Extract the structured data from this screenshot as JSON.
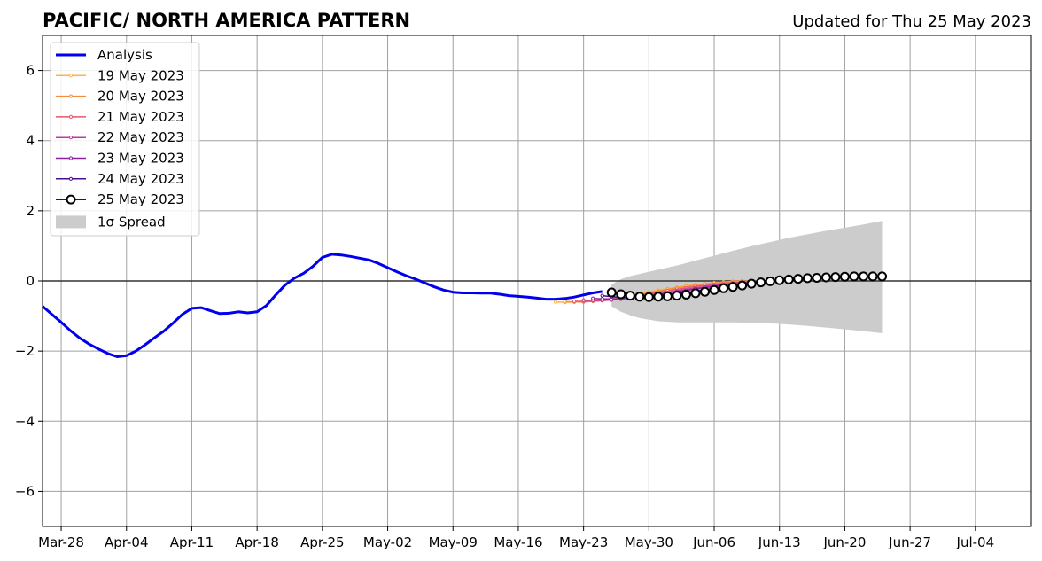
{
  "chart_data": {
    "type": "line",
    "title": "PACIFIC/ NORTH AMERICA PATTERN",
    "subtitle": "Updated for Thu 25 May 2023",
    "xlabel": "",
    "ylabel": "",
    "x_range": [
      "2023-03-26",
      "2023-07-10"
    ],
    "ylim": [
      -7,
      7
    ],
    "y_ticks": [
      -6,
      -4,
      -2,
      0,
      2,
      4,
      6
    ],
    "y_tick_labels": [
      "−6",
      "−4",
      "−2",
      "0",
      "2",
      "4",
      "6"
    ],
    "x_ticks": [
      "2023-03-28",
      "2023-04-04",
      "2023-04-11",
      "2023-04-18",
      "2023-04-25",
      "2023-05-02",
      "2023-05-09",
      "2023-05-16",
      "2023-05-23",
      "2023-05-30",
      "2023-06-06",
      "2023-06-13",
      "2023-06-20",
      "2023-06-27",
      "2023-07-04"
    ],
    "x_tick_labels": [
      "Mar-28",
      "Apr-04",
      "Apr-11",
      "Apr-18",
      "Apr-25",
      "May-02",
      "May-09",
      "May-16",
      "May-23",
      "May-30",
      "Jun-06",
      "Jun-13",
      "Jun-20",
      "Jun-27",
      "Jul-04"
    ],
    "grid": true,
    "legend_position": "top-left",
    "legend": [
      "Analysis",
      "19 May 2023",
      "20 May 2023",
      "21 May 2023",
      "22 May 2023",
      "23 May 2023",
      "24 May 2023",
      "25 May 2023",
      "1σ Spread"
    ],
    "series": [
      {
        "name": "Analysis",
        "color": "#0000ee",
        "x": [
          "2023-03-26",
          "2023-03-27",
          "2023-03-28",
          "2023-03-29",
          "2023-03-30",
          "2023-03-31",
          "2023-04-01",
          "2023-04-02",
          "2023-04-03",
          "2023-04-04",
          "2023-04-05",
          "2023-04-06",
          "2023-04-07",
          "2023-04-08",
          "2023-04-09",
          "2023-04-10",
          "2023-04-11",
          "2023-04-12",
          "2023-04-13",
          "2023-04-14",
          "2023-04-15",
          "2023-04-16",
          "2023-04-17",
          "2023-04-18",
          "2023-04-19",
          "2023-04-20",
          "2023-04-21",
          "2023-04-22",
          "2023-04-23",
          "2023-04-24",
          "2023-04-25",
          "2023-04-26",
          "2023-04-27",
          "2023-04-28",
          "2023-04-29",
          "2023-04-30",
          "2023-05-01",
          "2023-05-02",
          "2023-05-03",
          "2023-05-04",
          "2023-05-05",
          "2023-05-06",
          "2023-05-07",
          "2023-05-08",
          "2023-05-09",
          "2023-05-10",
          "2023-05-11",
          "2023-05-12",
          "2023-05-13",
          "2023-05-14",
          "2023-05-15",
          "2023-05-16",
          "2023-05-17",
          "2023-05-18",
          "2023-05-19",
          "2023-05-20",
          "2023-05-21",
          "2023-05-22",
          "2023-05-23",
          "2023-05-24",
          "2023-05-25"
        ],
        "y": [
          -0.72,
          -0.95,
          -1.18,
          -1.42,
          -1.63,
          -1.8,
          -1.94,
          -2.07,
          -2.16,
          -2.13,
          -2.0,
          -1.82,
          -1.62,
          -1.43,
          -1.2,
          -0.95,
          -0.78,
          -0.76,
          -0.85,
          -0.93,
          -0.92,
          -0.88,
          -0.91,
          -0.88,
          -0.7,
          -0.4,
          -0.12,
          0.08,
          0.22,
          0.42,
          0.67,
          0.76,
          0.74,
          0.7,
          0.65,
          0.6,
          0.5,
          0.38,
          0.26,
          0.15,
          0.05,
          -0.06,
          -0.17,
          -0.26,
          -0.32,
          -0.34,
          -0.34,
          -0.35,
          -0.35,
          -0.38,
          -0.42,
          -0.44,
          -0.46,
          -0.49,
          -0.52,
          -0.52,
          -0.5,
          -0.46,
          -0.4,
          -0.34,
          -0.3
        ]
      },
      {
        "name": "19 May 2023",
        "color": "#ffb347",
        "x": [
          "2023-05-20",
          "2023-05-21",
          "2023-05-22",
          "2023-05-23",
          "2023-05-24",
          "2023-05-25",
          "2023-05-26",
          "2023-05-27",
          "2023-05-28",
          "2023-05-29",
          "2023-05-30",
          "2023-05-31",
          "2023-06-01",
          "2023-06-02",
          "2023-06-03",
          "2023-06-04",
          "2023-06-05",
          "2023-06-06",
          "2023-06-07",
          "2023-06-08",
          "2023-06-09"
        ],
        "y": [
          -0.6,
          -0.61,
          -0.6,
          -0.58,
          -0.56,
          -0.53,
          -0.5,
          -0.46,
          -0.41,
          -0.36,
          -0.31,
          -0.26,
          -0.22,
          -0.18,
          -0.14,
          -0.11,
          -0.08,
          -0.05,
          -0.03,
          -0.01,
          0.0
        ]
      },
      {
        "name": "20 May 2023",
        "color": "#f58d3c",
        "x": [
          "2023-05-21",
          "2023-05-22",
          "2023-05-23",
          "2023-05-24",
          "2023-05-25",
          "2023-05-26",
          "2023-05-27",
          "2023-05-28",
          "2023-05-29",
          "2023-05-30",
          "2023-05-31",
          "2023-06-01",
          "2023-06-02",
          "2023-06-03",
          "2023-06-04",
          "2023-06-05",
          "2023-06-06",
          "2023-06-07",
          "2023-06-08",
          "2023-06-09",
          "2023-06-10"
        ],
        "y": [
          -0.59,
          -0.6,
          -0.6,
          -0.58,
          -0.56,
          -0.53,
          -0.49,
          -0.44,
          -0.39,
          -0.34,
          -0.29,
          -0.24,
          -0.2,
          -0.16,
          -0.12,
          -0.09,
          -0.06,
          -0.04,
          -0.02,
          -0.01,
          0.0
        ]
      },
      {
        "name": "21 May 2023",
        "color": "#e8556d",
        "x": [
          "2023-05-22",
          "2023-05-23",
          "2023-05-24",
          "2023-05-25",
          "2023-05-26",
          "2023-05-27",
          "2023-05-28",
          "2023-05-29",
          "2023-05-30",
          "2023-05-31",
          "2023-06-01",
          "2023-06-02",
          "2023-06-03",
          "2023-06-04",
          "2023-06-05",
          "2023-06-06",
          "2023-06-07",
          "2023-06-08",
          "2023-06-09",
          "2023-06-10",
          "2023-06-11"
        ],
        "y": [
          -0.58,
          -0.58,
          -0.57,
          -0.56,
          -0.54,
          -0.5,
          -0.46,
          -0.41,
          -0.37,
          -0.32,
          -0.28,
          -0.24,
          -0.2,
          -0.16,
          -0.13,
          -0.1,
          -0.07,
          -0.05,
          -0.03,
          -0.01,
          0.0
        ]
      },
      {
        "name": "22 May 2023",
        "color": "#c13a9a",
        "x": [
          "2023-05-23",
          "2023-05-24",
          "2023-05-25",
          "2023-05-26",
          "2023-05-27",
          "2023-05-28",
          "2023-05-29",
          "2023-05-30",
          "2023-05-31",
          "2023-06-01",
          "2023-06-02",
          "2023-06-03",
          "2023-06-04",
          "2023-06-05",
          "2023-06-06",
          "2023-06-07",
          "2023-06-08",
          "2023-06-09",
          "2023-06-10",
          "2023-06-11",
          "2023-06-12"
        ],
        "y": [
          -0.55,
          -0.55,
          -0.55,
          -0.54,
          -0.52,
          -0.49,
          -0.45,
          -0.41,
          -0.37,
          -0.33,
          -0.28,
          -0.24,
          -0.2,
          -0.17,
          -0.13,
          -0.1,
          -0.07,
          -0.05,
          -0.03,
          -0.01,
          0.0
        ]
      },
      {
        "name": "23 May 2023",
        "color": "#8a1fa3",
        "x": [
          "2023-05-24",
          "2023-05-25",
          "2023-05-26",
          "2023-05-27",
          "2023-05-28",
          "2023-05-29",
          "2023-05-30",
          "2023-05-31",
          "2023-06-01",
          "2023-06-02",
          "2023-06-03",
          "2023-06-04",
          "2023-06-05",
          "2023-06-06",
          "2023-06-07",
          "2023-06-08",
          "2023-06-09",
          "2023-06-10",
          "2023-06-11",
          "2023-06-12",
          "2023-06-13"
        ],
        "y": [
          -0.5,
          -0.51,
          -0.51,
          -0.5,
          -0.48,
          -0.46,
          -0.43,
          -0.39,
          -0.35,
          -0.31,
          -0.27,
          -0.23,
          -0.19,
          -0.16,
          -0.13,
          -0.1,
          -0.07,
          -0.05,
          -0.03,
          -0.01,
          0.0
        ]
      },
      {
        "name": "24 May 2023",
        "color": "#4a0c8f",
        "x": [
          "2023-05-25",
          "2023-05-26",
          "2023-05-27",
          "2023-05-28",
          "2023-05-29",
          "2023-05-30",
          "2023-05-31",
          "2023-06-01",
          "2023-06-02",
          "2023-06-03",
          "2023-06-04",
          "2023-06-05",
          "2023-06-06",
          "2023-06-07",
          "2023-06-08",
          "2023-06-09",
          "2023-06-10",
          "2023-06-11",
          "2023-06-12",
          "2023-06-13",
          "2023-06-14"
        ],
        "y": [
          -0.42,
          -0.45,
          -0.47,
          -0.47,
          -0.46,
          -0.44,
          -0.42,
          -0.39,
          -0.36,
          -0.33,
          -0.29,
          -0.25,
          -0.21,
          -0.17,
          -0.13,
          -0.1,
          -0.07,
          -0.04,
          -0.02,
          0.0,
          0.01
        ]
      },
      {
        "name": "25 May 2023",
        "color": "#000000",
        "x": [
          "2023-05-26",
          "2023-05-27",
          "2023-05-28",
          "2023-05-29",
          "2023-05-30",
          "2023-05-31",
          "2023-06-01",
          "2023-06-02",
          "2023-06-03",
          "2023-06-04",
          "2023-06-05",
          "2023-06-06",
          "2023-06-07",
          "2023-06-08",
          "2023-06-09",
          "2023-06-10",
          "2023-06-11",
          "2023-06-12",
          "2023-06-13",
          "2023-06-14",
          "2023-06-15",
          "2023-06-16",
          "2023-06-17",
          "2023-06-18",
          "2023-06-19",
          "2023-06-20",
          "2023-06-21",
          "2023-06-22",
          "2023-06-23",
          "2023-06-24"
        ],
        "y": [
          -0.33,
          -0.38,
          -0.42,
          -0.45,
          -0.46,
          -0.45,
          -0.44,
          -0.42,
          -0.39,
          -0.35,
          -0.31,
          -0.26,
          -0.21,
          -0.17,
          -0.13,
          -0.08,
          -0.04,
          -0.01,
          0.02,
          0.04,
          0.06,
          0.08,
          0.09,
          0.1,
          0.11,
          0.12,
          0.13,
          0.13,
          0.13,
          0.13
        ]
      }
    ],
    "spread": {
      "name": "1σ Spread",
      "color": "#cccccc",
      "x": [
        "2023-05-26",
        "2023-05-27",
        "2023-05-28",
        "2023-05-29",
        "2023-05-31",
        "2023-06-02",
        "2023-06-04",
        "2023-06-06",
        "2023-06-08",
        "2023-06-10",
        "2023-06-12",
        "2023-06-14",
        "2023-06-16",
        "2023-06-18",
        "2023-06-20",
        "2023-06-22",
        "2023-06-24"
      ],
      "upper": [
        -0.1,
        0.05,
        0.14,
        0.2,
        0.32,
        0.44,
        0.58,
        0.72,
        0.86,
        0.99,
        1.11,
        1.23,
        1.33,
        1.43,
        1.52,
        1.61,
        1.71
      ],
      "lower": [
        -0.72,
        -0.88,
        -0.98,
        -1.06,
        -1.15,
        -1.18,
        -1.18,
        -1.18,
        -1.18,
        -1.19,
        -1.21,
        -1.24,
        -1.28,
        -1.33,
        -1.38,
        -1.43,
        -1.49
      ]
    }
  }
}
